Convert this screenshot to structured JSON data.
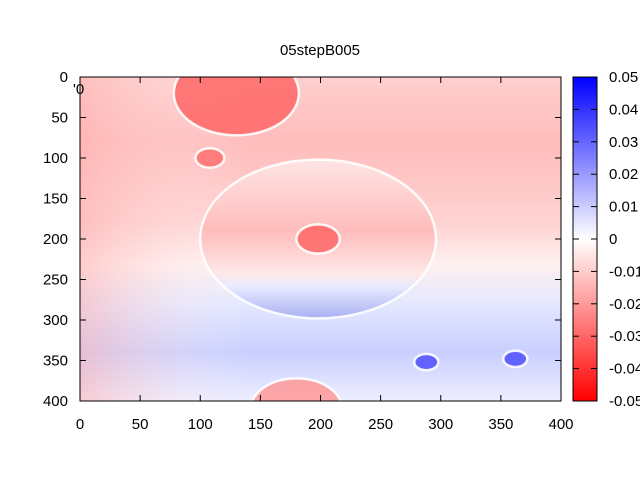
{
  "chart_data": {
    "type": "heatmap",
    "title": "05stepB005",
    "xlabel": "",
    "ylabel": "",
    "xlim": [
      0,
      400
    ],
    "ylim": [
      400,
      0
    ],
    "x_ticks": [
      "0",
      "50",
      "100",
      "150",
      "200",
      "250",
      "300",
      "350",
      "400"
    ],
    "y_ticks": [
      "0",
      "50",
      "100",
      "150",
      "200",
      "250",
      "300",
      "350",
      "400"
    ],
    "colorbar": {
      "range": [
        -0.05,
        0.05
      ],
      "ticks": [
        "0.05",
        "0.04",
        "0.03",
        "0.02",
        "0.01",
        "0",
        "-0.01",
        "-0.02",
        "-0.03",
        "-0.04",
        "-0.05"
      ],
      "colors": {
        "low": "#ff0000",
        "mid": "#ffffff",
        "high": "#0000ff"
      }
    },
    "legend_fragment": "'0",
    "features": [
      {
        "kind": "circle",
        "cx": 130,
        "cy": 20,
        "r": 52,
        "value": -0.03
      },
      {
        "kind": "circle",
        "cx": 108,
        "cy": 100,
        "r": 12,
        "value": -0.028
      },
      {
        "kind": "circle",
        "cx": 198,
        "cy": 200,
        "r": 98,
        "value": -0.02
      },
      {
        "kind": "circle",
        "cx": 198,
        "cy": 200,
        "r": 18,
        "value": -0.03
      },
      {
        "kind": "circle",
        "cx": 180,
        "cy": 410,
        "r": 38,
        "value": -0.02
      },
      {
        "kind": "circle",
        "cx": 288,
        "cy": 352,
        "r": 10,
        "value": 0.035
      },
      {
        "kind": "circle",
        "cx": 362,
        "cy": 348,
        "r": 10,
        "value": 0.035
      }
    ]
  }
}
